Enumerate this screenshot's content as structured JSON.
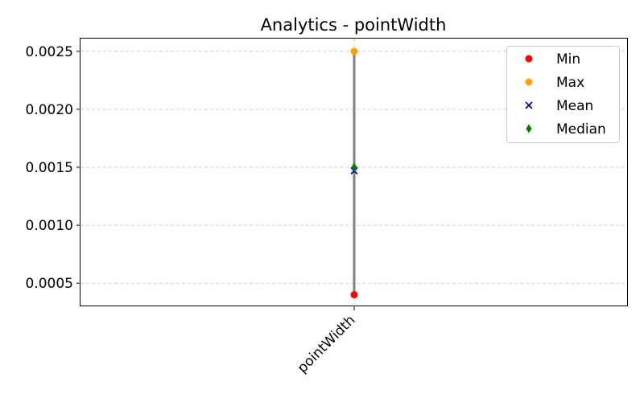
{
  "chart_data": {
    "type": "scatter",
    "title": "Analytics - pointWidth",
    "xlabel": "",
    "ylabel": "",
    "categories": [
      "pointWidth"
    ],
    "ylim": [
      0.0003,
      0.00261
    ],
    "yticks": [
      "0.0005",
      "0.0010",
      "0.0015",
      "0.0020",
      "0.0025"
    ],
    "grid": true,
    "legend_position": "top-right",
    "series": [
      {
        "name": "Min",
        "marker": "circle",
        "color": "#ff0000",
        "values": [
          0.0004
        ]
      },
      {
        "name": "Max",
        "marker": "circle",
        "color": "#ffa500",
        "values": [
          0.0025
        ]
      },
      {
        "name": "Mean",
        "marker": "x",
        "color": "#0000cc",
        "values": [
          0.00147
        ]
      },
      {
        "name": "Median",
        "marker": "diamond",
        "color": "#008000",
        "values": [
          0.0015
        ]
      }
    ],
    "range_line_color": "#808080"
  }
}
